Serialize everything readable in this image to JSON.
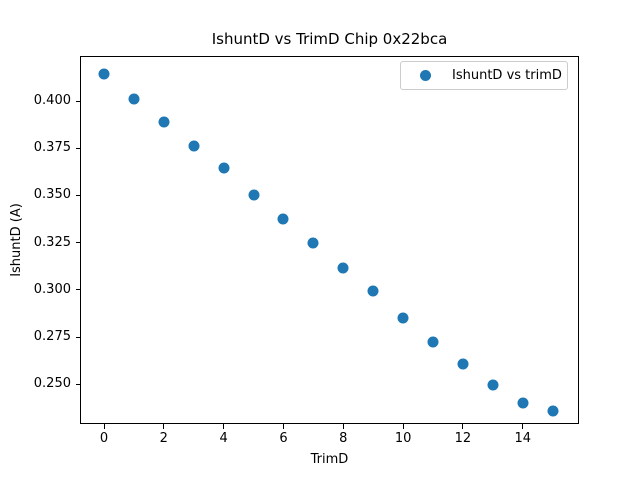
{
  "figure": {
    "title": "IshuntD vs TrimD Chip 0x22bca"
  },
  "chart_data": {
    "type": "scatter",
    "title": "IshuntD vs TrimD Chip 0x22bca",
    "xlabel": "TrimD",
    "ylabel": "IshuntD (A)",
    "legend": [
      "IshuntD vs trimD"
    ],
    "legend_position": "upper right",
    "marker": "circle",
    "marker_color": "#1f77b4",
    "grid": false,
    "x": [
      0,
      1,
      2,
      3,
      4,
      5,
      6,
      7,
      8,
      9,
      10,
      11,
      12,
      13,
      14,
      15
    ],
    "y": [
      0.4141,
      0.4011,
      0.3889,
      0.3762,
      0.3644,
      0.3504,
      0.3373,
      0.3246,
      0.3117,
      0.2993,
      0.2849,
      0.2722,
      0.2605,
      0.2496,
      0.2402,
      0.2358
    ],
    "xtick_values": [
      0,
      2,
      4,
      6,
      8,
      10,
      12,
      14
    ],
    "xticks": [
      "0",
      "2",
      "4",
      "6",
      "8",
      "10",
      "12",
      "14"
    ],
    "ytick_values": [
      0.25,
      0.275,
      0.3,
      0.325,
      0.35,
      0.375,
      0.4
    ],
    "yticks": [
      "0.250",
      "0.275",
      "0.300",
      "0.325",
      "0.350",
      "0.375",
      "0.400"
    ],
    "xlim": [
      -0.786,
      15.831
    ],
    "ylim": [
      0.2295,
      0.4233
    ]
  }
}
